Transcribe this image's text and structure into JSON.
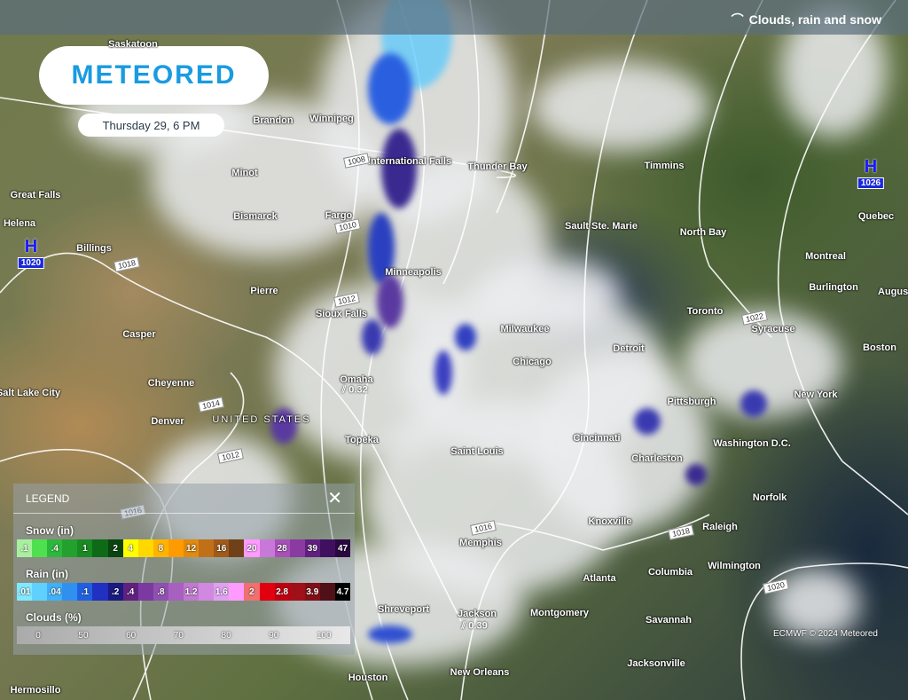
{
  "header": {
    "layer_title": "Clouds, rain and snow",
    "layer_icon": "cloud-rain-snow-icon"
  },
  "logo": {
    "text": "METEORED"
  },
  "date_label": "Thursday 29, 6 PM",
  "country_label": "UNITED STATES",
  "cities": [
    "Saskatoon",
    "Brandon",
    "Winnipeg",
    "Minot",
    "International Falls",
    "Thunder Bay",
    "Timmins",
    "Great Falls",
    "Bismarck",
    "Fargo",
    "Helena",
    "Billings",
    "Sault Ste. Marie",
    "North Bay",
    "Quebec",
    "Montreal",
    "Burlington",
    "Augusta",
    "Pierre",
    "Minneapolis",
    "Sioux Falls",
    "Toronto",
    "Syracuse",
    "Casper",
    "Milwaukee",
    "Boston",
    "Detroit",
    "Chicago",
    "Salt Lake City",
    "Cheyenne",
    "Omaha",
    "Pittsburgh",
    "New York",
    "Denver",
    "Topeka",
    "Cincinnati",
    "Saint Louis",
    "Washington D.C.",
    "Charleston",
    "Norfolk",
    "Knoxville",
    "Raleigh",
    "Memphis",
    "Atlanta",
    "Columbia",
    "Wilmington",
    "Shreveport",
    "Jackson",
    "Montgomery",
    "Savannah",
    "Jacksonville",
    "Houston",
    "New Orleans",
    "Hermosillo"
  ],
  "high_pressure": [
    {
      "label": "H",
      "value": "1020"
    },
    {
      "label": "H",
      "value": "1026"
    }
  ],
  "isobar_labels": [
    "1008",
    "1010",
    "1018",
    "1012",
    "1022",
    "1014",
    "1012",
    "1016",
    "1016",
    "1018",
    "1020"
  ],
  "precip_values": [
    "0.32",
    "0.39"
  ],
  "copyright": "ECMWF © 2024 Meteored",
  "legend": {
    "title": "LEGEND",
    "snow_label": "Snow (in)",
    "snow": [
      {
        "v": ".1",
        "c": "#a8f0a0"
      },
      {
        "v": "",
        "c": "#4ee04e"
      },
      {
        "v": ".4",
        "c": "#2cb83c"
      },
      {
        "v": "",
        "c": "#24a02e"
      },
      {
        "v": "1",
        "c": "#1a8a24"
      },
      {
        "v": "",
        "c": "#0e6a16"
      },
      {
        "v": "2",
        "c": "#0a4410"
      },
      {
        "v": "4",
        "c": "#ffff00"
      },
      {
        "v": "",
        "c": "#ffd800"
      },
      {
        "v": "8",
        "c": "#ffb400"
      },
      {
        "v": "",
        "c": "#ff9a00"
      },
      {
        "v": "12",
        "c": "#e08a10"
      },
      {
        "v": "",
        "c": "#c07018"
      },
      {
        "v": "16",
        "c": "#a05a1a"
      },
      {
        "v": "",
        "c": "#704018"
      },
      {
        "v": "20",
        "c": "#ff9aff"
      },
      {
        "v": "",
        "c": "#c878d8"
      },
      {
        "v": "28",
        "c": "#a850b8"
      },
      {
        "v": "",
        "c": "#8a3aa0"
      },
      {
        "v": "39",
        "c": "#602080"
      },
      {
        "v": "",
        "c": "#401060"
      },
      {
        "v": "47",
        "c": "#2a0840"
      }
    ],
    "rain_label": "Rain (in)",
    "rain": [
      {
        "v": ".01",
        "c": "#80e8ff"
      },
      {
        "v": "",
        "c": "#60d0ff"
      },
      {
        "v": ".04",
        "c": "#40b0f8"
      },
      {
        "v": "",
        "c": "#3090f0"
      },
      {
        "v": ".1",
        "c": "#2060e0"
      },
      {
        "v": "",
        "c": "#2030c0"
      },
      {
        "v": ".2",
        "c": "#1a1a80"
      },
      {
        "v": ".4",
        "c": "#602080"
      },
      {
        "v": "",
        "c": "#7a3aa0"
      },
      {
        "v": ".8",
        "c": "#9050b0"
      },
      {
        "v": "",
        "c": "#a860c0"
      },
      {
        "v": "1.2",
        "c": "#c078d0"
      },
      {
        "v": "",
        "c": "#d088e0"
      },
      {
        "v": "1.6",
        "c": "#e0a0f0"
      },
      {
        "v": "",
        "c": "#ff9aff"
      },
      {
        "v": "2",
        "c": "#f07070"
      },
      {
        "v": "",
        "c": "#e00010"
      },
      {
        "v": "2.8",
        "c": "#c00010"
      },
      {
        "v": "",
        "c": "#a01018"
      },
      {
        "v": "3.9",
        "c": "#801018"
      },
      {
        "v": "",
        "c": "#501018"
      },
      {
        "v": "4.7",
        "c": "#000000"
      }
    ],
    "clouds_label": "Clouds (%)",
    "clouds": [
      "0",
      "50",
      "60",
      "70",
      "80",
      "90",
      "100"
    ]
  }
}
